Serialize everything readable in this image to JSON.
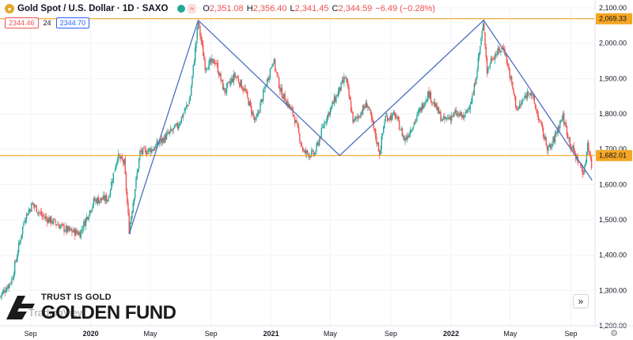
{
  "header": {
    "symbol": "Gold Spot / U.S. Dollar · 1D · SAXO",
    "wave_icon": "≈",
    "o_label": "O",
    "o_value": "2,351.08",
    "h_label": "H",
    "h_value": "2,356.40",
    "l_label": "L",
    "l_value": "2,341.45",
    "c_label": "C",
    "c_value": "2,344.59",
    "change": "−6.49 (−0.28%)",
    "sell_price": "2344.46",
    "spread": "24",
    "buy_price": "2344.70"
  },
  "watermark": {
    "tagline": "TRUST IS GOLD",
    "name": "GOLDEN FUND",
    "tv_text": "TradingView"
  },
  "controls": {
    "scroll_icon": "»",
    "settings_icon": "gear-icon"
  },
  "chart_data": {
    "type": "candlestick",
    "instrument": "Gold Spot / U.S. Dollar",
    "interval": "1D",
    "ylim": [
      1200,
      2100
    ],
    "y_ticks": [
      1200,
      1300,
      1400,
      1500,
      1600,
      1700,
      1800,
      1900,
      2000,
      2100
    ],
    "y_tick_labels": [
      "1,200.00",
      "1,300.00",
      "1,400.00",
      "1,500.00",
      "1,600.00",
      "1,700.00",
      "1,800.00",
      "1,900.00",
      "2,000.00",
      "2,100.00"
    ],
    "x_range": [
      "2019-07-01",
      "2022-10-20"
    ],
    "x_ticks": [
      {
        "date": "2019-09-01",
        "label": "Sep",
        "bold": false
      },
      {
        "date": "2020-01-01",
        "label": "2020",
        "bold": true
      },
      {
        "date": "2020-05-01",
        "label": "May",
        "bold": false
      },
      {
        "date": "2020-09-01",
        "label": "Sep",
        "bold": false
      },
      {
        "date": "2021-01-01",
        "label": "2021",
        "bold": true
      },
      {
        "date": "2021-05-01",
        "label": "May",
        "bold": false
      },
      {
        "date": "2021-09-01",
        "label": "Sep",
        "bold": false
      },
      {
        "date": "2022-01-01",
        "label": "2022",
        "bold": true
      },
      {
        "date": "2022-05-01",
        "label": "May",
        "bold": false
      },
      {
        "date": "2022-09-01",
        "label": "Sep",
        "bold": false
      }
    ],
    "price_anchors": [
      [
        "2019-07-01",
        1283
      ],
      [
        "2019-07-25",
        1330
      ],
      [
        "2019-08-20",
        1505
      ],
      [
        "2019-09-05",
        1545
      ],
      [
        "2019-09-25",
        1510
      ],
      [
        "2019-10-20",
        1492
      ],
      [
        "2019-11-15",
        1470
      ],
      [
        "2019-12-10",
        1462
      ],
      [
        "2020-01-08",
        1555
      ],
      [
        "2020-02-05",
        1560
      ],
      [
        "2020-02-24",
        1680
      ],
      [
        "2020-03-09",
        1660
      ],
      [
        "2020-03-19",
        1472
      ],
      [
        "2020-04-10",
        1690
      ],
      [
        "2020-05-05",
        1700
      ],
      [
        "2020-06-01",
        1735
      ],
      [
        "2020-06-25",
        1765
      ],
      [
        "2020-07-20",
        1840
      ],
      [
        "2020-08-06",
        2060
      ],
      [
        "2020-08-20",
        1935
      ],
      [
        "2020-09-10",
        1950
      ],
      [
        "2020-09-28",
        1862
      ],
      [
        "2020-10-20",
        1910
      ],
      [
        "2020-11-09",
        1865
      ],
      [
        "2020-11-30",
        1775
      ],
      [
        "2021-01-05",
        1955
      ],
      [
        "2021-01-20",
        1865
      ],
      [
        "2021-02-15",
        1800
      ],
      [
        "2021-03-08",
        1690
      ],
      [
        "2021-03-30",
        1685
      ],
      [
        "2021-04-20",
        1780
      ],
      [
        "2021-05-10",
        1840
      ],
      [
        "2021-06-01",
        1905
      ],
      [
        "2021-06-17",
        1775
      ],
      [
        "2021-07-15",
        1830
      ],
      [
        "2021-08-09",
        1690
      ],
      [
        "2021-08-20",
        1790
      ],
      [
        "2021-09-10",
        1795
      ],
      [
        "2021-09-29",
        1725
      ],
      [
        "2021-10-25",
        1795
      ],
      [
        "2021-11-16",
        1860
      ],
      [
        "2021-12-15",
        1780
      ],
      [
        "2022-01-10",
        1800
      ],
      [
        "2022-01-28",
        1790
      ],
      [
        "2022-02-15",
        1855
      ],
      [
        "2022-03-08",
        2060
      ],
      [
        "2022-03-15",
        1920
      ],
      [
        "2022-03-25",
        1960
      ],
      [
        "2022-04-18",
        1990
      ],
      [
        "2022-05-15",
        1810
      ],
      [
        "2022-06-10",
        1870
      ],
      [
        "2022-07-14",
        1710
      ],
      [
        "2022-07-21",
        1700
      ],
      [
        "2022-08-15",
        1795
      ],
      [
        "2022-09-01",
        1710
      ],
      [
        "2022-09-28",
        1630
      ],
      [
        "2022-10-05",
        1720
      ],
      [
        "2022-10-14",
        1645
      ]
    ],
    "support_line": {
      "value": 1682.01,
      "label": "1,682.01",
      "color": "#f5a623"
    },
    "resistance_line": {
      "value": 2069.33,
      "label": "2,069.33",
      "color": "#f5a623"
    },
    "pattern_line": {
      "color": "#4c6fbf",
      "points": [
        [
          "2020-03-19",
          1460
        ],
        [
          "2020-08-06",
          2065
        ],
        [
          "2021-05-20",
          1682
        ],
        [
          "2022-03-08",
          2065
        ],
        [
          "2022-10-14",
          1612
        ]
      ]
    },
    "colors": {
      "up": "#26a69a",
      "down": "#ef5350",
      "grid": "#f0f3fa"
    }
  }
}
